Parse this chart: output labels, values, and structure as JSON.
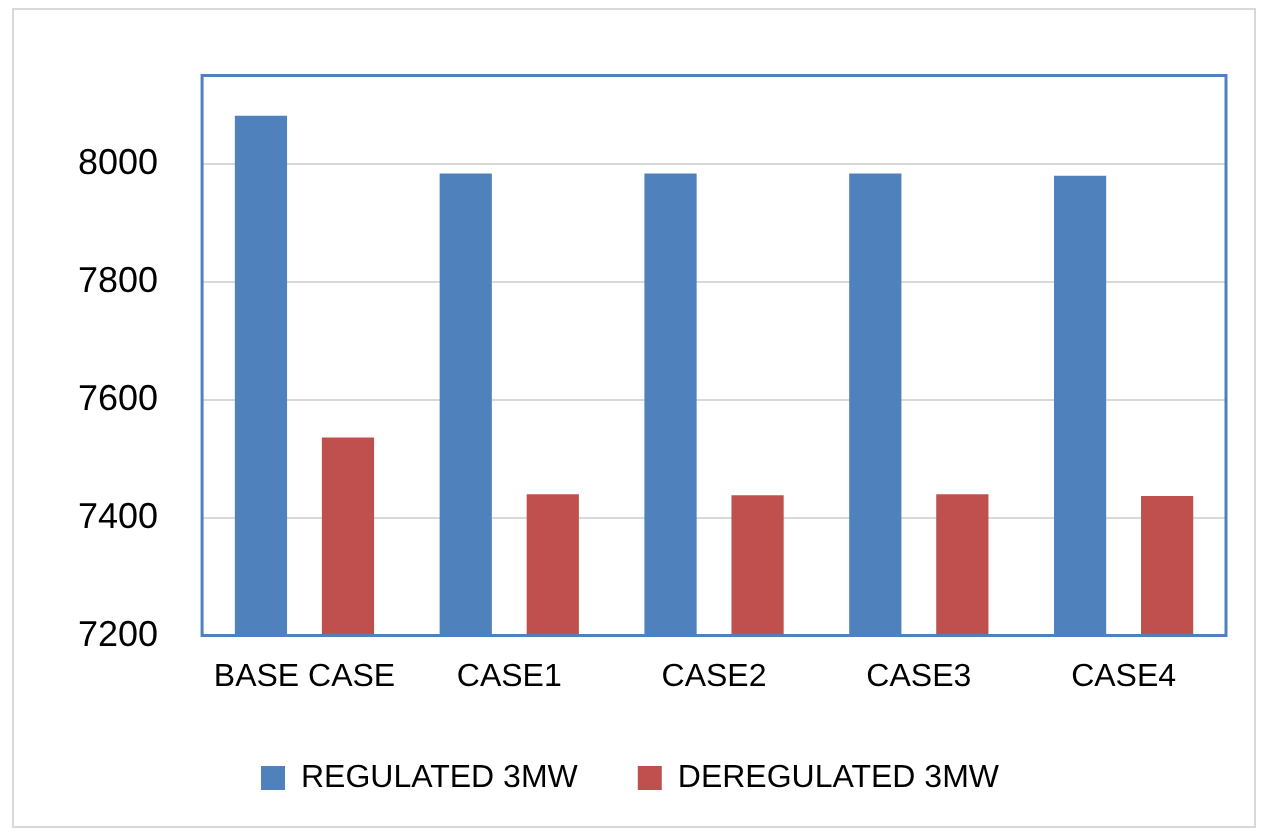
{
  "chart_data": {
    "type": "bar",
    "categories": [
      "BASE CASE",
      "CASE1",
      "CASE2",
      "CASE3",
      "CASE4"
    ],
    "series": [
      {
        "name": "REGULATED 3MW",
        "color": "#4f81bd",
        "values": [
          8082,
          7984,
          7984,
          7984,
          7980
        ]
      },
      {
        "name": "DEREGULATED 3MW",
        "color": "#c0504d",
        "values": [
          7536,
          7440,
          7438,
          7440,
          7437
        ]
      }
    ],
    "ylim": [
      7200,
      8150
    ],
    "yticks": [
      7200,
      7400,
      7600,
      7800,
      8000
    ],
    "grid": "y",
    "legend": "bottom"
  }
}
